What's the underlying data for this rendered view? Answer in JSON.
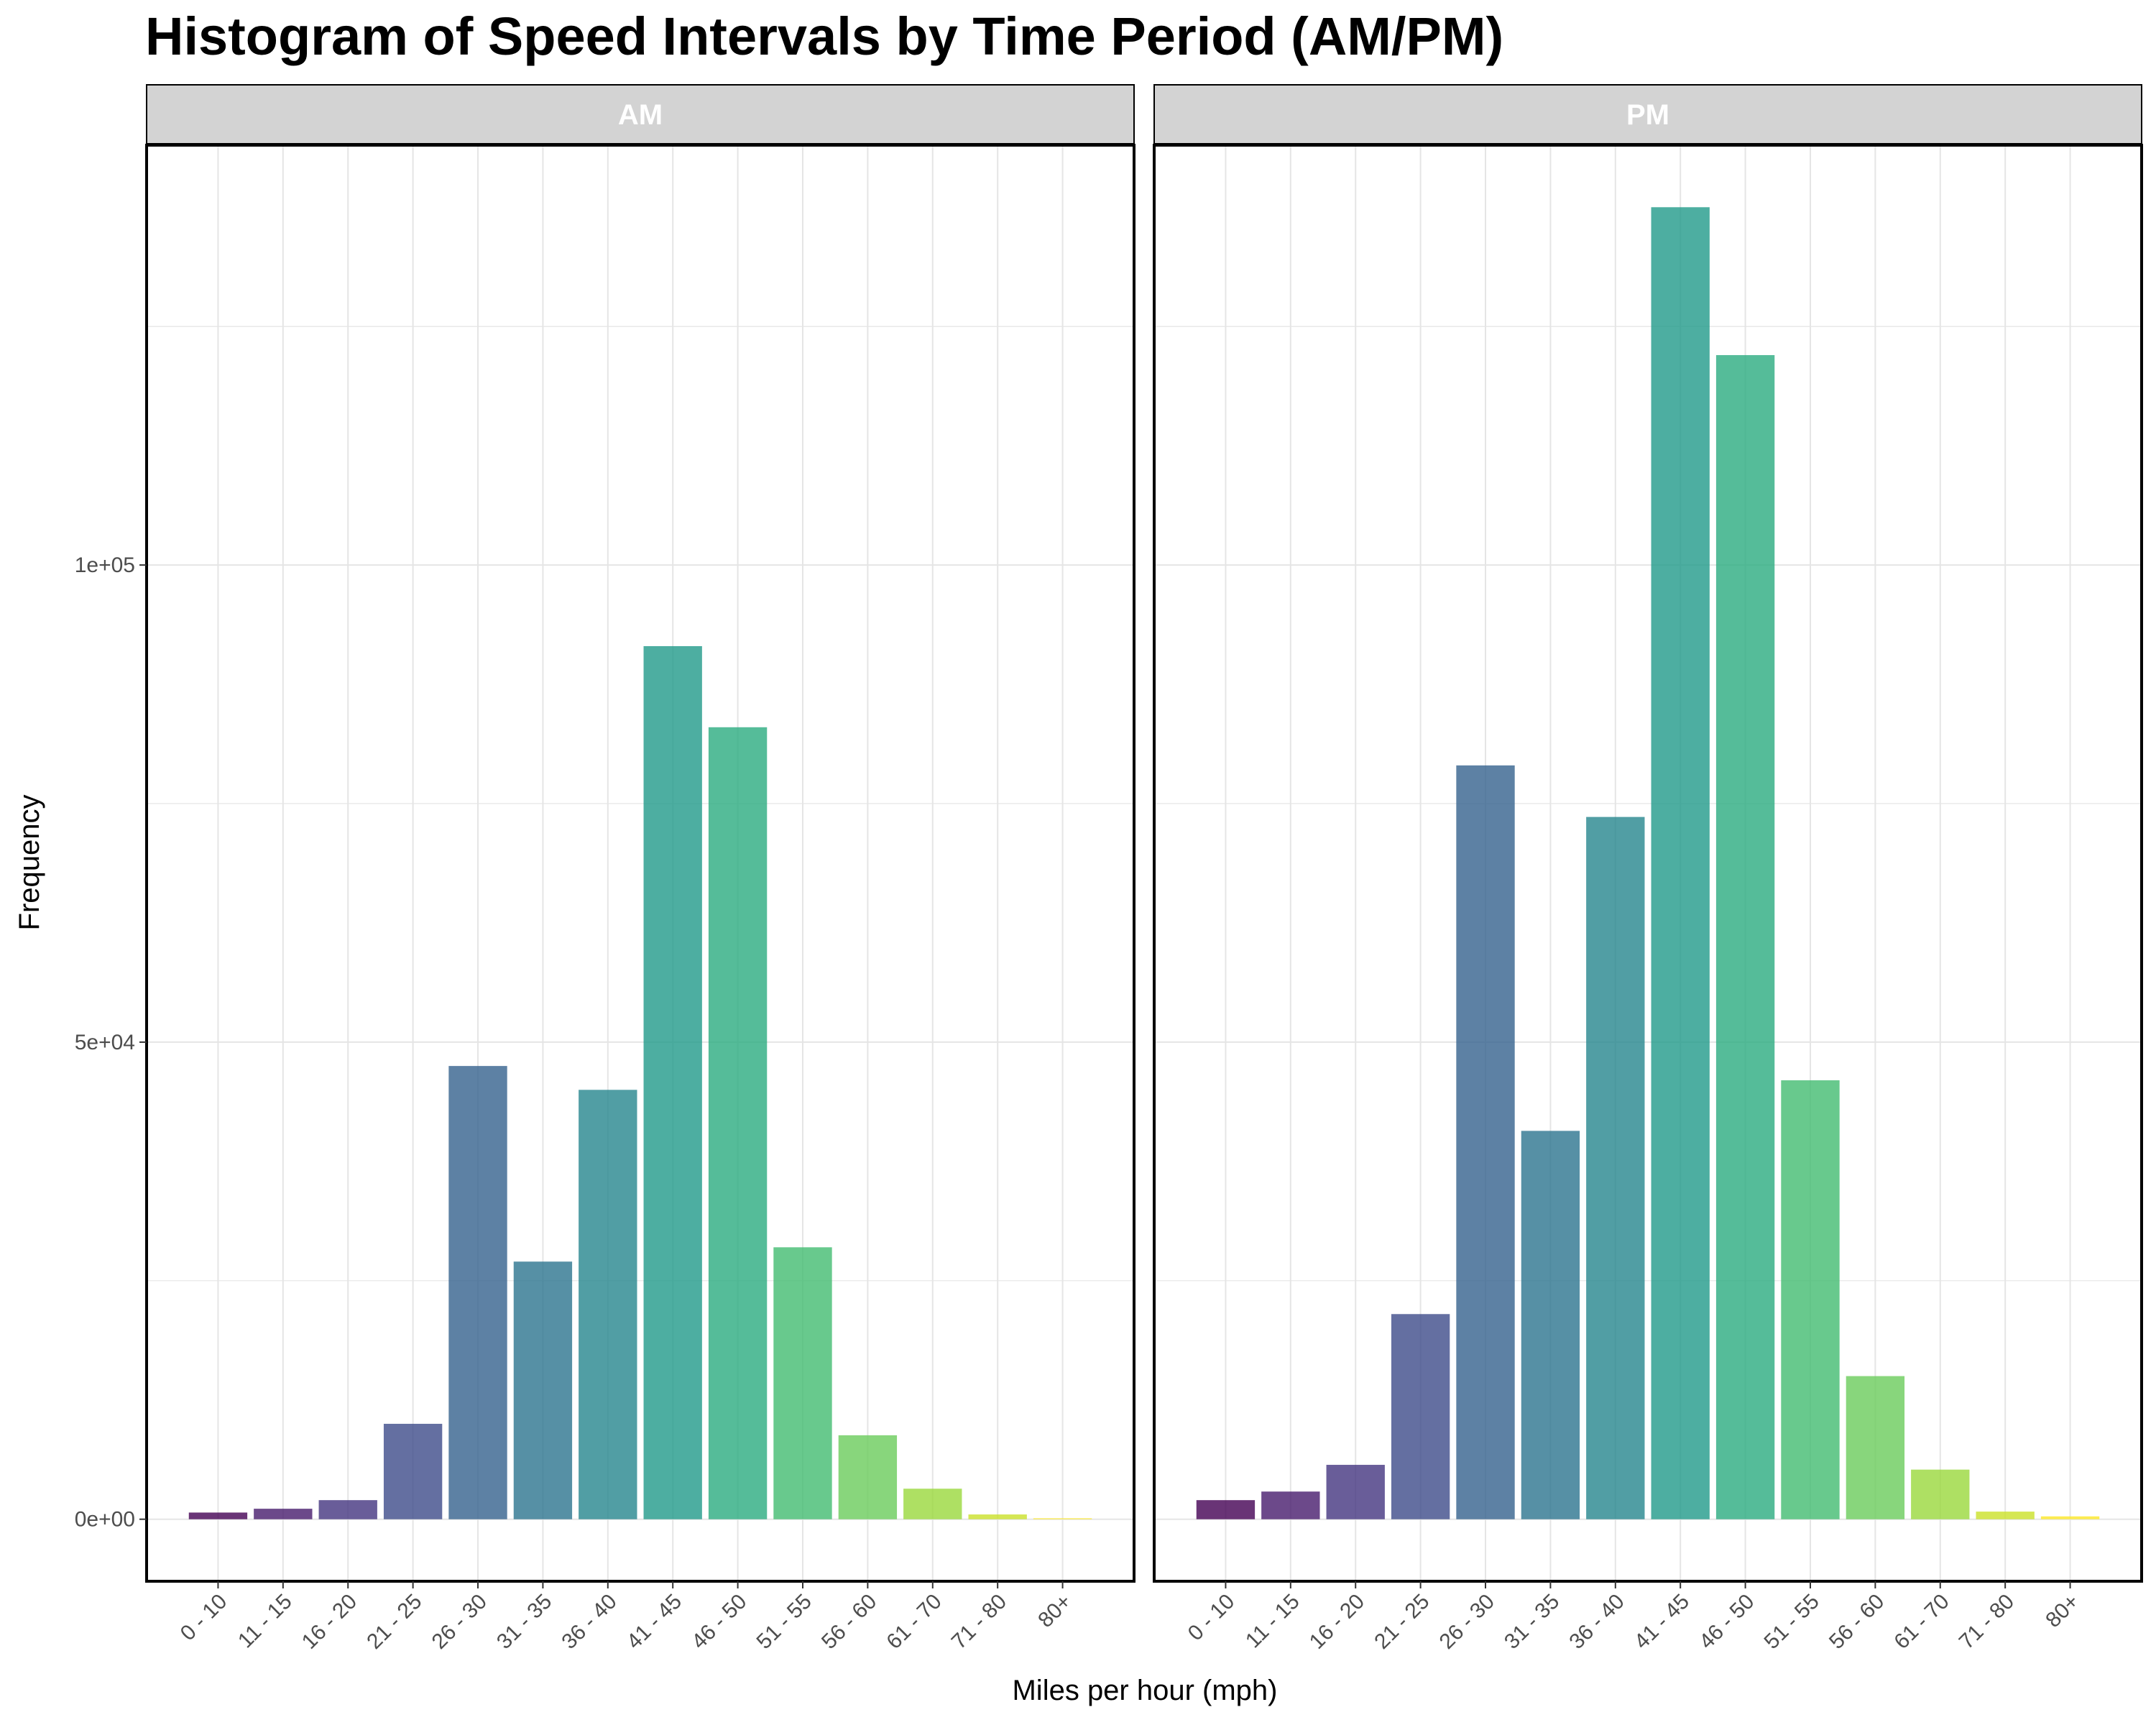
{
  "chart_data": {
    "type": "bar",
    "title": "Histogram of Speed Intervals by Time Period (AM/PM)",
    "xlabel": "Miles per hour (mph)",
    "ylabel": "Frequency",
    "ylim": [
      -6500,
      144000
    ],
    "yticks": [
      0,
      50000,
      100000
    ],
    "ytick_labels": [
      "0e+00",
      "5e+04",
      "1e+05"
    ],
    "grid": true,
    "facets": [
      "AM",
      "PM"
    ],
    "categories": [
      "0 - 10",
      "11 - 15",
      "16 - 20",
      "21 - 25",
      "26 - 30",
      "31 - 35",
      "36 - 40",
      "41 - 45",
      "46 - 50",
      "51 - 55",
      "56 - 60",
      "61 - 70",
      "71 - 80",
      "80+"
    ],
    "series": [
      {
        "facet": "AM",
        "values": [
          700,
          1100,
          2000,
          10000,
          47500,
          27000,
          45000,
          91500,
          83000,
          28500,
          8800,
          3200,
          500,
          100
        ]
      },
      {
        "facet": "PM",
        "values": [
          2000,
          2900,
          5700,
          21500,
          79000,
          40700,
          73600,
          137500,
          122000,
          46000,
          15000,
          5200,
          800,
          300
        ]
      }
    ],
    "colors": [
      "#440154",
      "#482878",
      "#3e4989",
      "#31688e",
      "#26828e",
      "#1f9e89",
      "#35b779",
      "#6ece58",
      "#b5de2b",
      "#fde725"
    ],
    "strip_fill": "#d3d3d3",
    "grid_color": "#e5e5e5",
    "bar_opacity": 0.8
  }
}
